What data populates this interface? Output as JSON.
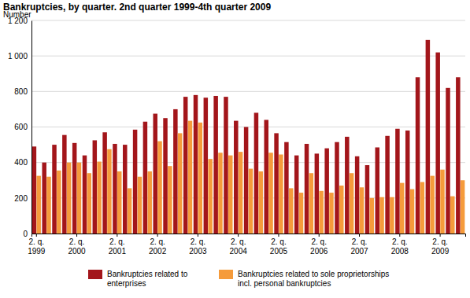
{
  "chart_data": {
    "type": "bar",
    "title": "Bankruptcies, by quarter. 2nd quarter 1999-4th quarter 2009",
    "y_label": "Number",
    "categories": [
      "2. q. 1999",
      null,
      null,
      null,
      "2. q. 2000",
      null,
      null,
      null,
      "2. q. 2001",
      null,
      null,
      null,
      "2. q. 2002",
      null,
      null,
      null,
      "2. q. 2003",
      null,
      null,
      null,
      "2. q. 2004",
      null,
      null,
      null,
      "2. q. 2005",
      null,
      null,
      null,
      "2. q. 2006",
      null,
      null,
      null,
      "2. q. 2007",
      null,
      null,
      null,
      "2. q. 2008",
      null,
      null,
      null,
      "2. q. 2009",
      null,
      null
    ],
    "series": [
      {
        "name": "Bankruptcies related to enterprises",
        "color": "#a3161b",
        "values": [
          490,
          400,
          500,
          555,
          510,
          440,
          525,
          570,
          505,
          500,
          585,
          630,
          675,
          650,
          700,
          770,
          780,
          765,
          775,
          770,
          635,
          600,
          680,
          640,
          565,
          515,
          440,
          505,
          450,
          480,
          515,
          545,
          435,
          385,
          485,
          550,
          590,
          580,
          880,
          1090,
          1020,
          820,
          880
        ]
      },
      {
        "name": "Bankruptcies related to sole proprietorships incl. personal bankruptcies",
        "color": "#f59b3b",
        "values": [
          325,
          320,
          355,
          400,
          400,
          340,
          405,
          475,
          350,
          255,
          320,
          350,
          520,
          380,
          565,
          635,
          625,
          420,
          455,
          440,
          460,
          365,
          350,
          455,
          445,
          255,
          230,
          340,
          240,
          230,
          270,
          340,
          260,
          200,
          205,
          205,
          285,
          250,
          290,
          325,
          360,
          210,
          300
        ]
      }
    ],
    "ylim": [
      0,
      1200
    ],
    "yticks": [
      0,
      200,
      400,
      600,
      800,
      {
        "value": 1000,
        "label": "1 000"
      },
      {
        "value": 1200,
        "label": "1 200"
      }
    ],
    "grid": true,
    "legend": "bottom"
  }
}
